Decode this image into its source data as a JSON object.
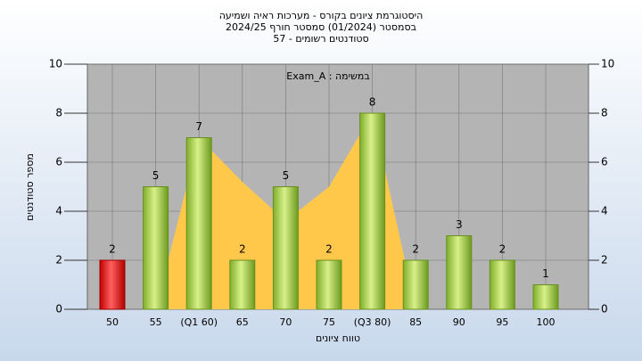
{
  "chart_data": {
    "type": "bar",
    "title": [
      "היסטוגרמת ציונים בקורס - מערכות ראיה ושמיעה",
      "בסמסטר (01/2024) סמסטר חורף 2024/25",
      "סטודנטים רשומים - 57"
    ],
    "annotation": "במשימה : Exam_A",
    "x_label": "טווח ציונים",
    "y_label": "מספר סטודנטים",
    "categories": [
      "50",
      "55",
      "(Q1 60)",
      "65",
      "70",
      "75",
      "(Q3 80)",
      "85",
      "90",
      "95",
      "100"
    ],
    "values": [
      2,
      5,
      7,
      2,
      5,
      2,
      8,
      2,
      3,
      2,
      1
    ],
    "colors": [
      "#e02020",
      "#9acd32",
      "#9acd32",
      "#9acd32",
      "#9acd32",
      "#9acd32",
      "#9acd32",
      "#9acd32",
      "#9acd32",
      "#9acd32",
      "#9acd32"
    ],
    "area_values": [
      null,
      0,
      7,
      5.2,
      3.6,
      5,
      8,
      0,
      null,
      null,
      null
    ],
    "area_color": "#ffc84a",
    "ylim": [
      0,
      10
    ],
    "yticks": [
      0,
      2,
      4,
      6,
      8,
      10
    ],
    "y2lim": [
      0,
      10
    ],
    "y2ticks": [
      0,
      2,
      4,
      6,
      8,
      10
    ],
    "grid": true
  }
}
